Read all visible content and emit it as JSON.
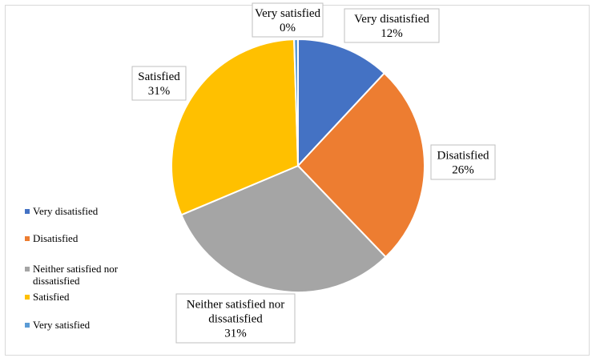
{
  "chart_data": {
    "type": "pie",
    "title": "",
    "categories": [
      "Very disatisfied",
      "Disatisfied",
      "Neither satisfied nor dissatisfied",
      "Satisfied",
      "Very satisfied"
    ],
    "values": [
      12,
      26,
      31,
      31,
      0.5
    ],
    "data_labels": [
      "12%",
      "26%",
      "31%",
      "31%",
      "0%"
    ],
    "colors": [
      "#4472c4",
      "#ed7d31",
      "#a5a5a5",
      "#ffc000",
      "#5b9bd5"
    ],
    "legend_position": "left",
    "legend_entries": [
      "Very disatisfied",
      "Disatisfied",
      "Neither satisfied nor dissatisfied",
      "Satisfied",
      "Very satisfied"
    ]
  }
}
